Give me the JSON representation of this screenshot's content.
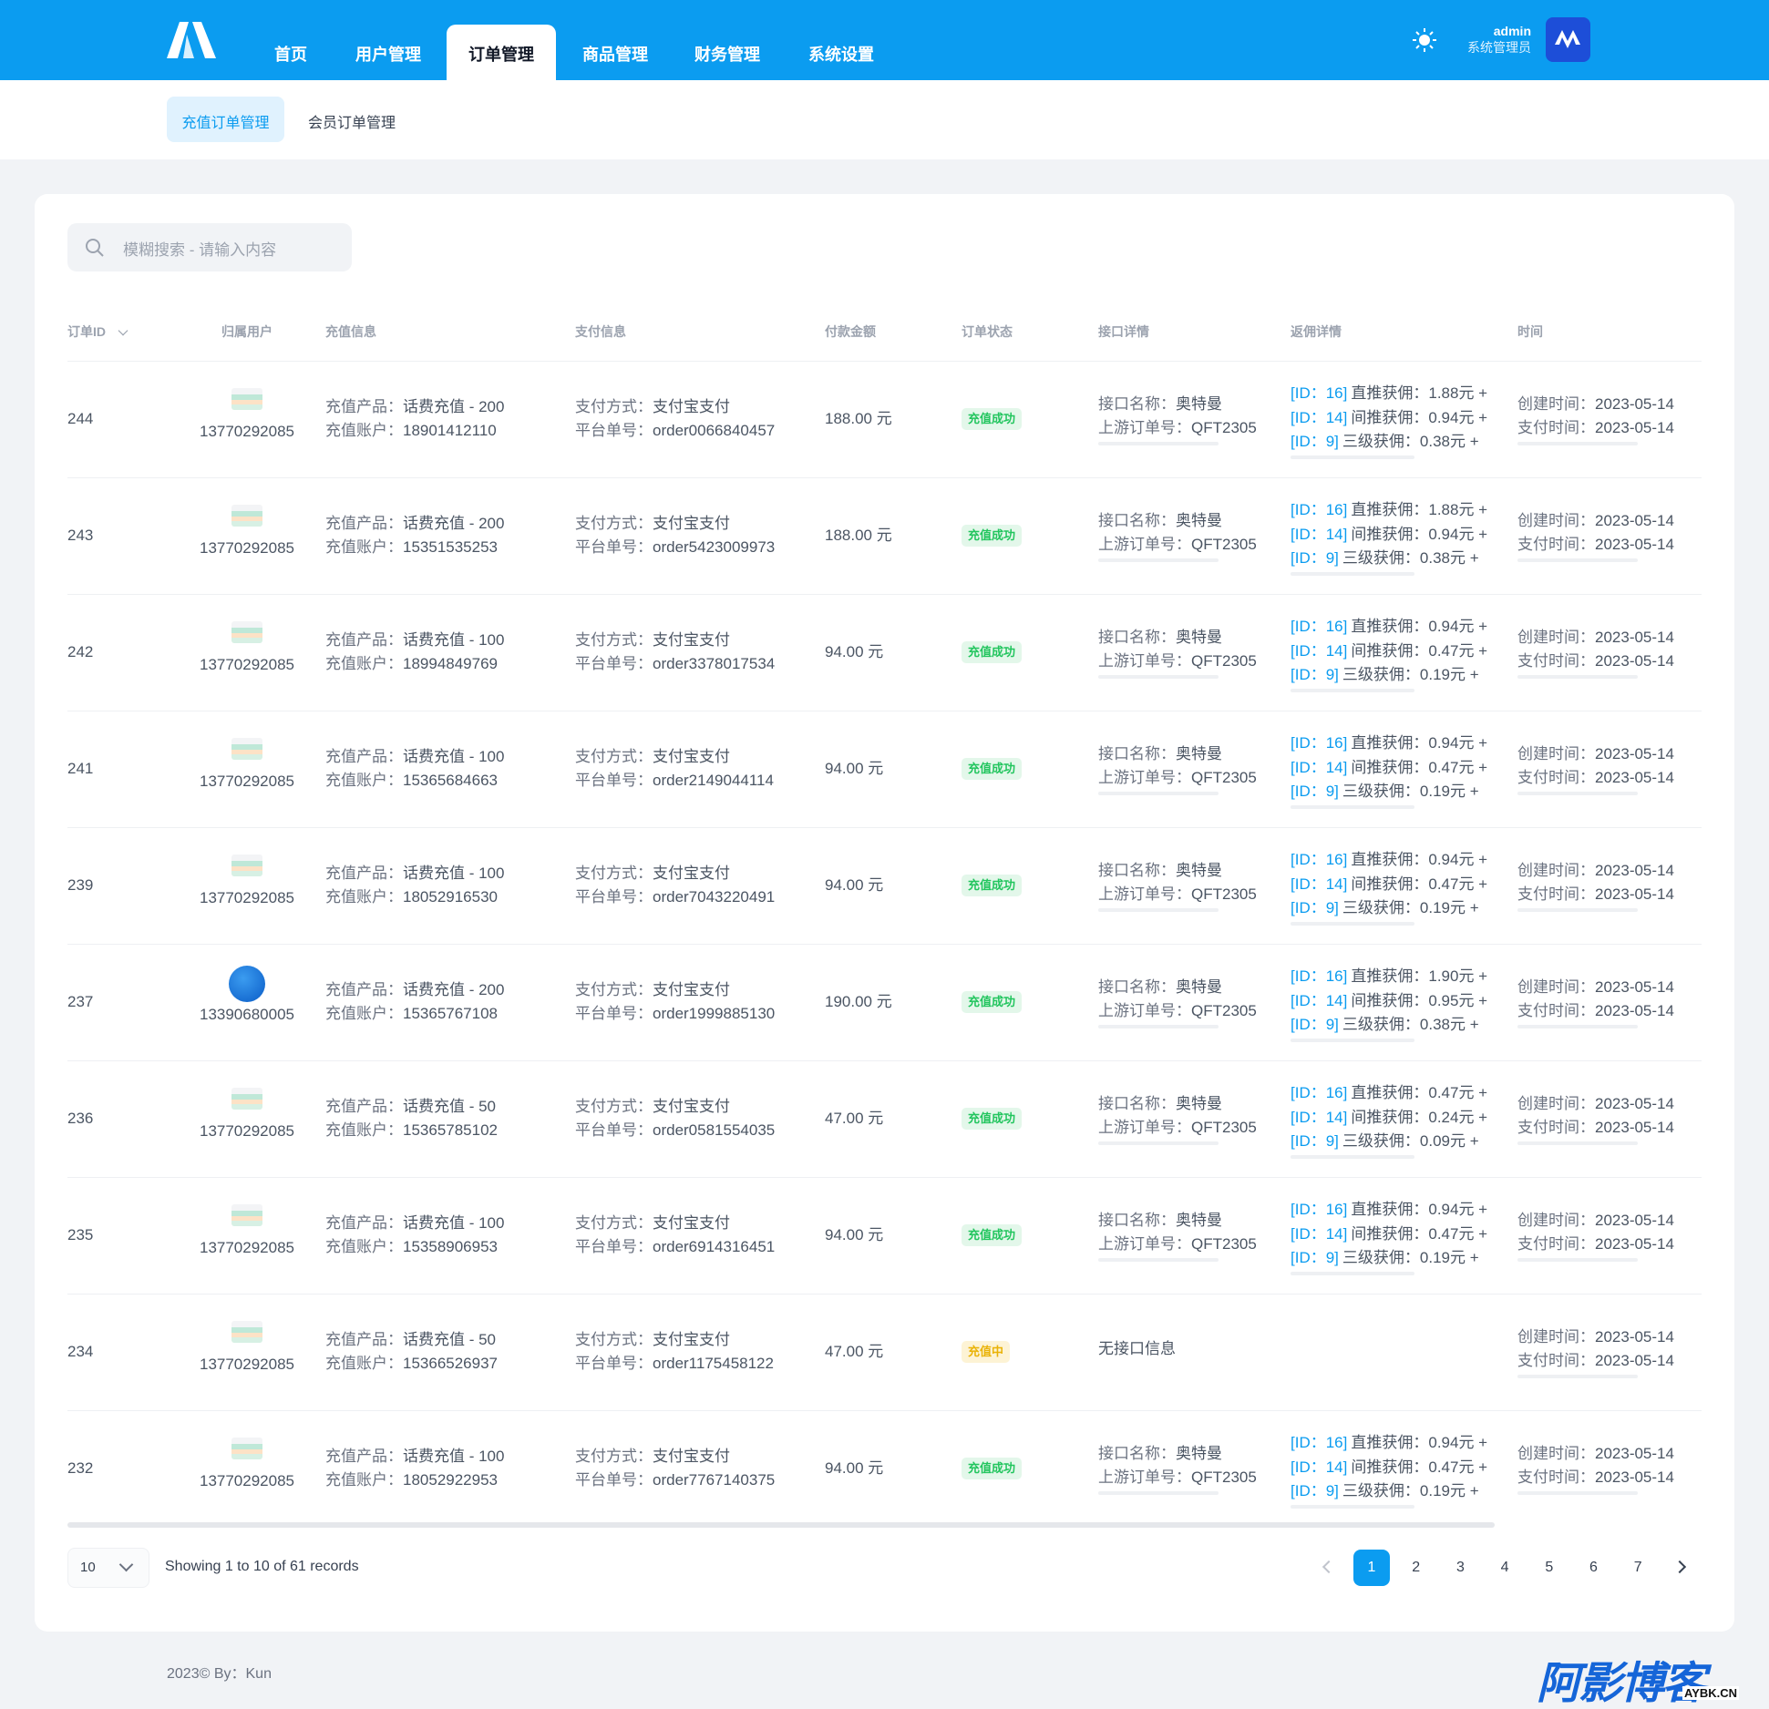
{
  "header": {
    "nav": [
      "首页",
      "用户管理",
      "订单管理",
      "商品管理",
      "财务管理",
      "系统设置"
    ],
    "user": {
      "name": "admin",
      "role": "系统管理员"
    }
  },
  "subnav": [
    "充值订单管理",
    "会员订单管理"
  ],
  "search": {
    "placeholder": "模糊搜索 - 请输入内容"
  },
  "table": {
    "columns": [
      "订单ID",
      "归属用户",
      "充值信息",
      "支付信息",
      "付款金额",
      "订单状态",
      "接口详情",
      "返佣详情",
      "时间"
    ],
    "labels": {
      "product": "充值产品：",
      "account": "充值账户：",
      "pay_method": "支付方式：",
      "order_no": "平台单号：",
      "api_name": "接口名称：",
      "upstream_no": "上游订单号：",
      "created": "创建时间：",
      "paid": "支付时间："
    },
    "rows": [
      {
        "id": "244",
        "icon": "product",
        "user": "13770292085",
        "product": "话费充值 - 200",
        "account": "18901412110",
        "pay_method": "支付宝支付",
        "order_no": "order0066840457",
        "amount": "188.00 元",
        "status": "充值成功",
        "status_type": "success",
        "api_name": "奥特曼",
        "upstream_no": "QFT2305",
        "rebates": [
          {
            "id": "[ID：16]",
            "text": "直推获佣：1.88元 +"
          },
          {
            "id": "[ID：14]",
            "text": "间推获佣：0.94元 +"
          },
          {
            "id": "[ID：9]",
            "text": "三级获佣：0.38元 +"
          }
        ],
        "created": "2023-05-14",
        "paid": "2023-05-14"
      },
      {
        "id": "243",
        "icon": "product",
        "user": "13770292085",
        "product": "话费充值 - 200",
        "account": "15351535253",
        "pay_method": "支付宝支付",
        "order_no": "order5423009973",
        "amount": "188.00 元",
        "status": "充值成功",
        "status_type": "success",
        "api_name": "奥特曼",
        "upstream_no": "QFT2305",
        "rebates": [
          {
            "id": "[ID：16]",
            "text": "直推获佣：1.88元 +"
          },
          {
            "id": "[ID：14]",
            "text": "间推获佣：0.94元 +"
          },
          {
            "id": "[ID：9]",
            "text": "三级获佣：0.38元 +"
          }
        ],
        "created": "2023-05-14",
        "paid": "2023-05-14"
      },
      {
        "id": "242",
        "icon": "product",
        "user": "13770292085",
        "product": "话费充值 - 100",
        "account": "18994849769",
        "pay_method": "支付宝支付",
        "order_no": "order3378017534",
        "amount": "94.00 元",
        "status": "充值成功",
        "status_type": "success",
        "api_name": "奥特曼",
        "upstream_no": "QFT2305",
        "rebates": [
          {
            "id": "[ID：16]",
            "text": "直推获佣：0.94元 +"
          },
          {
            "id": "[ID：14]",
            "text": "间推获佣：0.47元 +"
          },
          {
            "id": "[ID：9]",
            "text": "三级获佣：0.19元 +"
          }
        ],
        "created": "2023-05-14",
        "paid": "2023-05-14"
      },
      {
        "id": "241",
        "icon": "product",
        "user": "13770292085",
        "product": "话费充值 - 100",
        "account": "15365684663",
        "pay_method": "支付宝支付",
        "order_no": "order2149044114",
        "amount": "94.00 元",
        "status": "充值成功",
        "status_type": "success",
        "api_name": "奥特曼",
        "upstream_no": "QFT2305",
        "rebates": [
          {
            "id": "[ID：16]",
            "text": "直推获佣：0.94元 +"
          },
          {
            "id": "[ID：14]",
            "text": "间推获佣：0.47元 +"
          },
          {
            "id": "[ID：9]",
            "text": "三级获佣：0.19元 +"
          }
        ],
        "created": "2023-05-14",
        "paid": "2023-05-14"
      },
      {
        "id": "239",
        "icon": "product",
        "user": "13770292085",
        "product": "话费充值 - 100",
        "account": "18052916530",
        "pay_method": "支付宝支付",
        "order_no": "order7043220491",
        "amount": "94.00 元",
        "status": "充值成功",
        "status_type": "success",
        "api_name": "奥特曼",
        "upstream_no": "QFT2305",
        "rebates": [
          {
            "id": "[ID：16]",
            "text": "直推获佣：0.94元 +"
          },
          {
            "id": "[ID：14]",
            "text": "间推获佣：0.47元 +"
          },
          {
            "id": "[ID：9]",
            "text": "三级获佣：0.19元 +"
          }
        ],
        "created": "2023-05-14",
        "paid": "2023-05-14"
      },
      {
        "id": "237",
        "icon": "telecom",
        "user": "13390680005",
        "product": "话费充值 - 200",
        "account": "15365767108",
        "pay_method": "支付宝支付",
        "order_no": "order1999885130",
        "amount": "190.00 元",
        "status": "充值成功",
        "status_type": "success",
        "api_name": "奥特曼",
        "upstream_no": "QFT2305",
        "rebates": [
          {
            "id": "[ID：16]",
            "text": "直推获佣：1.90元 +"
          },
          {
            "id": "[ID：14]",
            "text": "间推获佣：0.95元 +"
          },
          {
            "id": "[ID：9]",
            "text": "三级获佣：0.38元 +"
          }
        ],
        "created": "2023-05-14",
        "paid": "2023-05-14"
      },
      {
        "id": "236",
        "icon": "product",
        "user": "13770292085",
        "product": "话费充值 - 50",
        "account": "15365785102",
        "pay_method": "支付宝支付",
        "order_no": "order0581554035",
        "amount": "47.00 元",
        "status": "充值成功",
        "status_type": "success",
        "api_name": "奥特曼",
        "upstream_no": "QFT2305",
        "rebates": [
          {
            "id": "[ID：16]",
            "text": "直推获佣：0.47元 +"
          },
          {
            "id": "[ID：14]",
            "text": "间推获佣：0.24元 +"
          },
          {
            "id": "[ID：9]",
            "text": "三级获佣：0.09元 +"
          }
        ],
        "created": "2023-05-14",
        "paid": "2023-05-14"
      },
      {
        "id": "235",
        "icon": "product",
        "user": "13770292085",
        "product": "话费充值 - 100",
        "account": "15358906953",
        "pay_method": "支付宝支付",
        "order_no": "order6914316451",
        "amount": "94.00 元",
        "status": "充值成功",
        "status_type": "success",
        "api_name": "奥特曼",
        "upstream_no": "QFT2305",
        "rebates": [
          {
            "id": "[ID：16]",
            "text": "直推获佣：0.94元 +"
          },
          {
            "id": "[ID：14]",
            "text": "间推获佣：0.47元 +"
          },
          {
            "id": "[ID：9]",
            "text": "三级获佣：0.19元 +"
          }
        ],
        "created": "2023-05-14",
        "paid": "2023-05-14"
      },
      {
        "id": "234",
        "icon": "product",
        "user": "13770292085",
        "product": "话费充值 - 50",
        "account": "15366526937",
        "pay_method": "支付宝支付",
        "order_no": "order1175458122",
        "amount": "47.00 元",
        "status": "充值中",
        "status_type": "pending",
        "api_info": "无接口信息",
        "rebates": [],
        "created": "2023-05-14",
        "paid": "2023-05-14"
      },
      {
        "id": "232",
        "icon": "product",
        "user": "13770292085",
        "product": "话费充值 - 100",
        "account": "18052922953",
        "pay_method": "支付宝支付",
        "order_no": "order7767140375",
        "amount": "94.00 元",
        "status": "充值成功",
        "status_type": "success",
        "api_name": "奥特曼",
        "upstream_no": "QFT2305",
        "rebates": [
          {
            "id": "[ID：16]",
            "text": "直推获佣：0.94元 +"
          },
          {
            "id": "[ID：14]",
            "text": "间推获佣：0.47元 +"
          },
          {
            "id": "[ID：9]",
            "text": "三级获佣：0.19元 +"
          }
        ],
        "created": "2023-05-14",
        "paid": "2023-05-14"
      }
    ]
  },
  "pagination": {
    "page_size": "10",
    "summary": "Showing 1 to 10 of 61 records",
    "pages": [
      "1",
      "2",
      "3",
      "4",
      "5",
      "6",
      "7"
    ]
  },
  "footer": {
    "copyright": "2023© By：Kun"
  },
  "watermark": {
    "title": "阿影博客",
    "url": "AYBK.CN"
  }
}
